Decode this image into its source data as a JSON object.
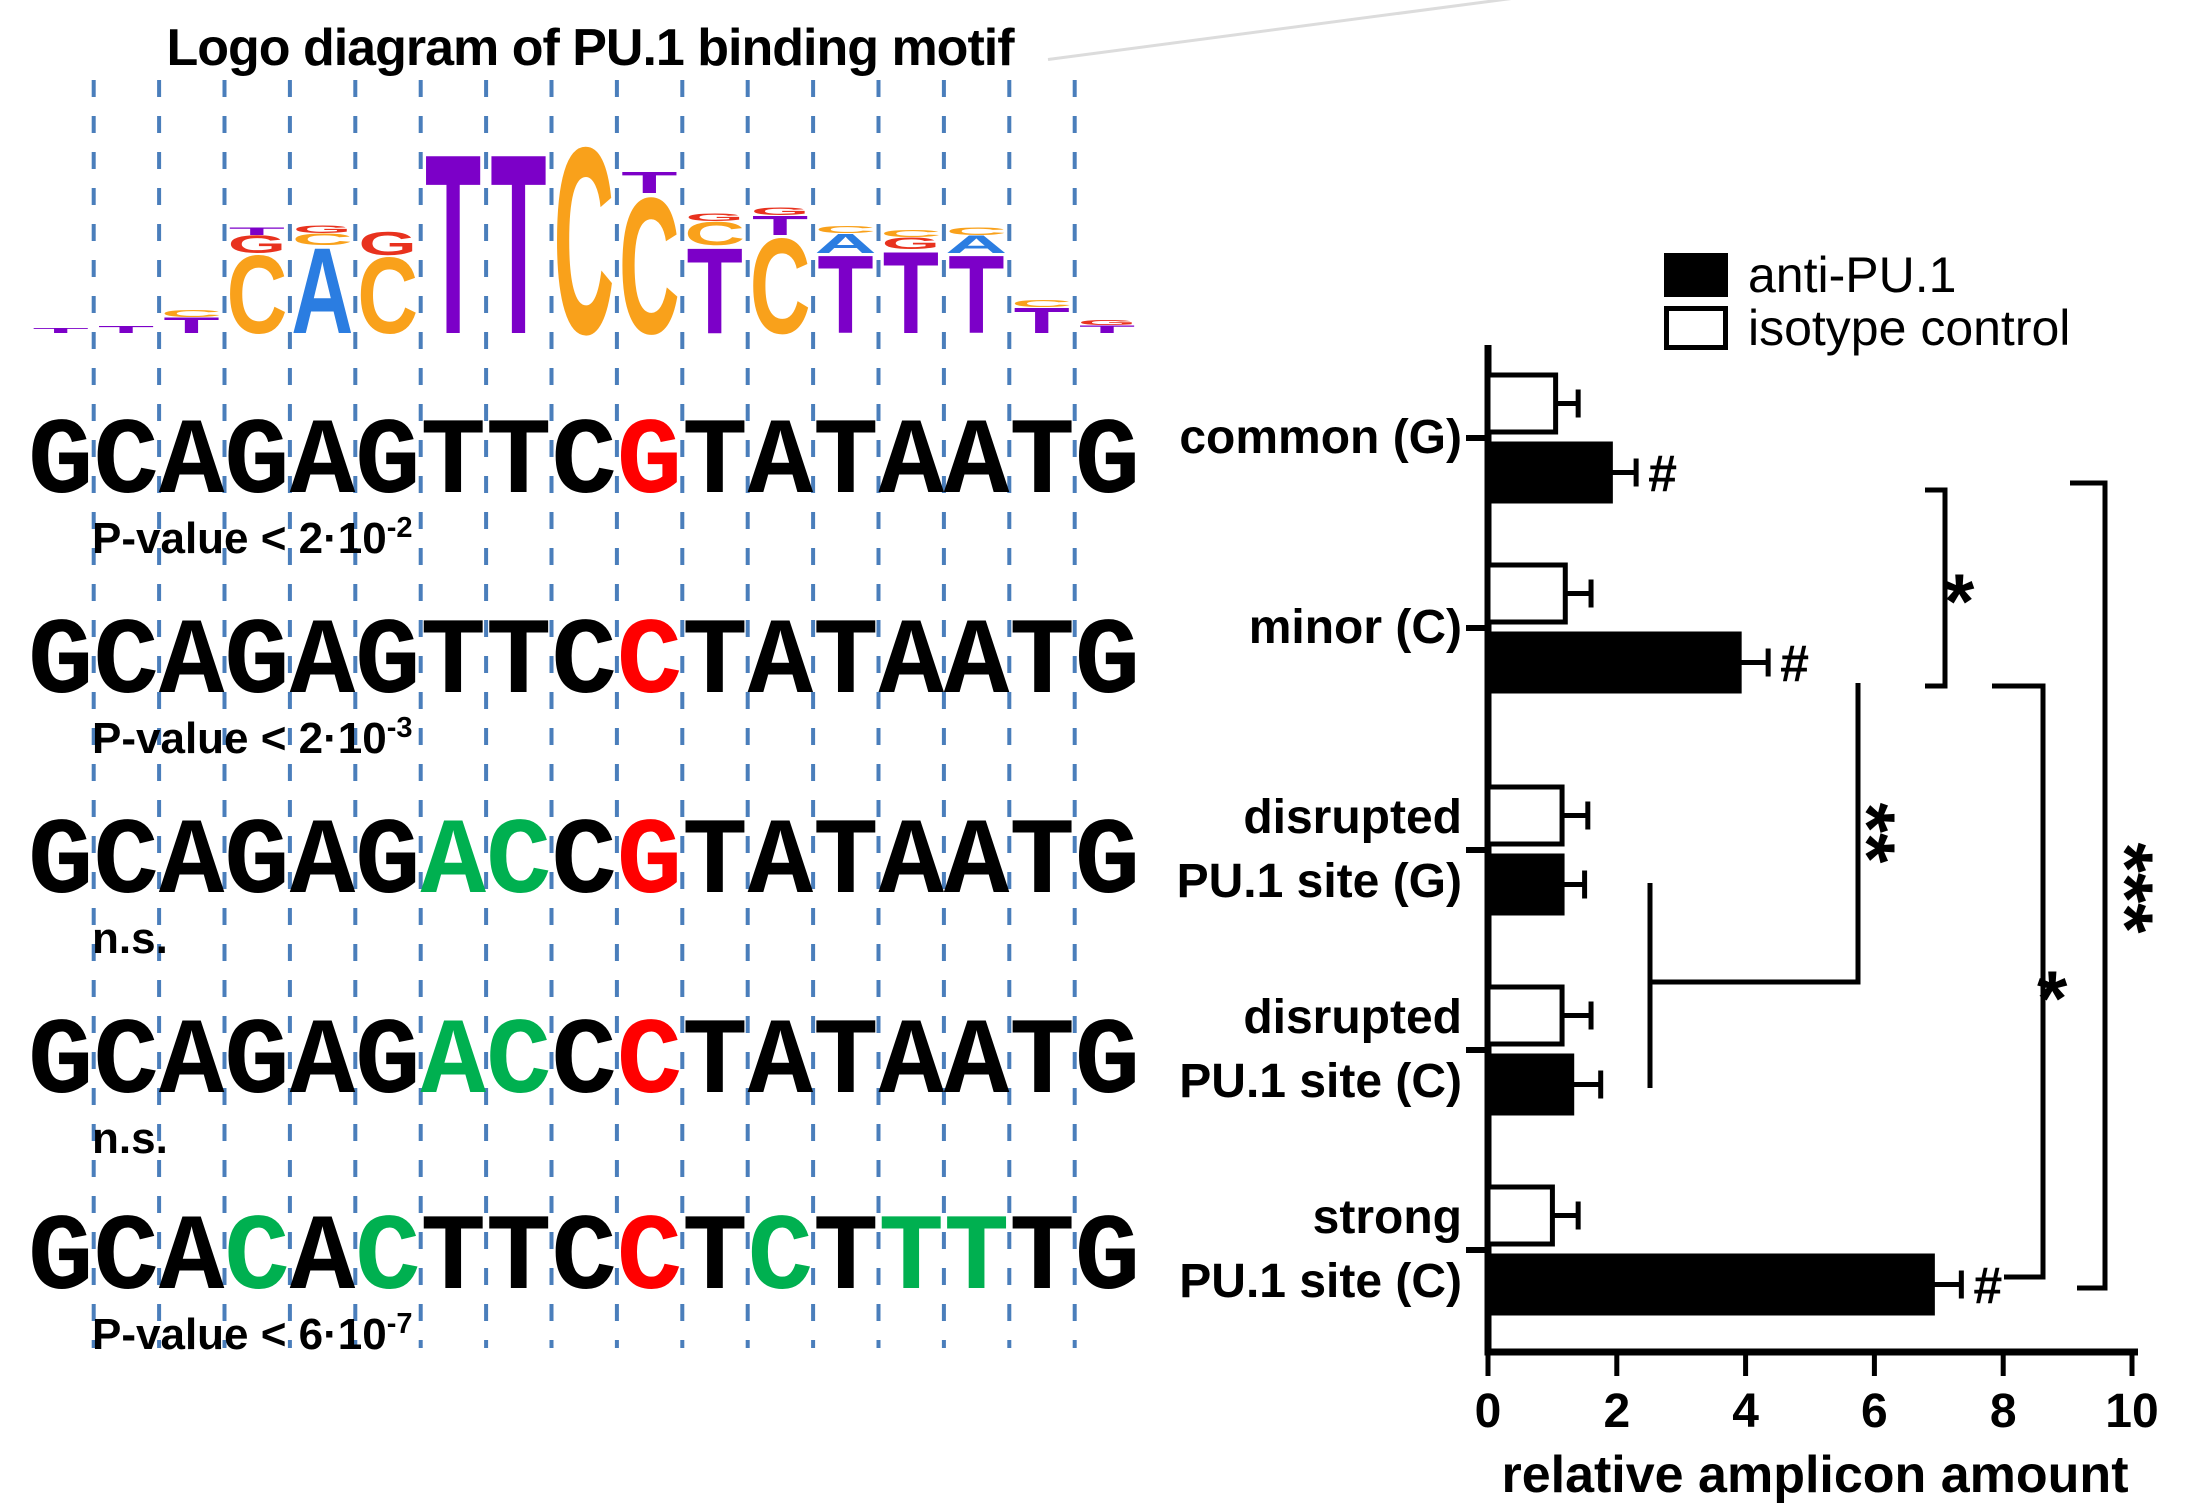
{
  "title": "Logo diagram of PU.1 binding motif",
  "colors": {
    "purple": "#7c00c8",
    "orange": "#f9a11b",
    "blue": "#2b7de1",
    "red_logo": "#e8321e",
    "red": "#ff0000",
    "green": "#00b050",
    "black": "#000000",
    "dash_blue": "#4a7ebb"
  },
  "logo_columns": [
    [
      [
        "T",
        "purple",
        5
      ]
    ],
    [
      [
        "T",
        "purple",
        7
      ]
    ],
    [
      [
        "T",
        "purple",
        16
      ],
      [
        "C",
        "orange",
        7
      ]
    ],
    [
      [
        "C",
        "orange",
        80
      ],
      [
        "G",
        "red_logo",
        18
      ],
      [
        "T",
        "purple",
        8
      ]
    ],
    [
      [
        "A",
        "blue",
        88
      ],
      [
        "C",
        "orange",
        12
      ],
      [
        "G",
        "red_logo",
        8
      ]
    ],
    [
      [
        "C",
        "orange",
        78
      ],
      [
        "G",
        "red_logo",
        24
      ]
    ],
    [
      [
        "T",
        "purple",
        185
      ]
    ],
    [
      [
        "T",
        "purple",
        185
      ]
    ],
    [
      [
        "C",
        "orange",
        192
      ]
    ],
    [
      [
        "C",
        "orange",
        140
      ],
      [
        "T",
        "purple",
        22
      ]
    ],
    [
      [
        "T",
        "purple",
        88
      ],
      [
        "C",
        "orange",
        24
      ],
      [
        "G",
        "red_logo",
        8
      ]
    ],
    [
      [
        "C",
        "orange",
        98
      ],
      [
        "T",
        "purple",
        20
      ],
      [
        "G",
        "red_logo",
        8
      ]
    ],
    [
      [
        "T",
        "purple",
        80
      ],
      [
        "A",
        "blue",
        20
      ],
      [
        "C",
        "orange",
        7
      ]
    ],
    [
      [
        "T",
        "purple",
        84
      ],
      [
        "G",
        "red_logo",
        12
      ],
      [
        "C",
        "orange",
        7
      ]
    ],
    [
      [
        "T",
        "purple",
        80
      ],
      [
        "A",
        "blue",
        18
      ],
      [
        "C",
        "orange",
        8
      ]
    ],
    [
      [
        "T",
        "purple",
        26
      ],
      [
        "C",
        "orange",
        7
      ]
    ],
    [
      [
        "T",
        "purple",
        8
      ],
      [
        "G",
        "red_logo",
        5
      ]
    ]
  ],
  "sequences": [
    {
      "seq": "GCAGAGTTCGTATAATG",
      "colors": {
        "9": "red"
      },
      "label": "P-value < 2·10",
      "sup": "-2"
    },
    {
      "seq": "GCAGAGTTCCTATAATG",
      "colors": {
        "9": "red"
      },
      "label": "P-value < 2·10",
      "sup": "-3"
    },
    {
      "seq": "GCAGAGACCGTATAATG",
      "colors": {
        "6": "green",
        "7": "green",
        "9": "red"
      },
      "label": "n.s.",
      "sup": ""
    },
    {
      "seq": "GCAGAGACCCTATAATG",
      "colors": {
        "6": "green",
        "7": "green",
        "9": "red"
      },
      "label": "n.s.",
      "sup": ""
    },
    {
      "seq": "GCACACTTCCTCTTTTG",
      "colors": {
        "3": "green",
        "5": "green",
        "9": "red",
        "11": "green",
        "13": "green",
        "14": "green"
      },
      "label": "P-value < 6·10",
      "sup": "-7"
    }
  ],
  "chart_data": {
    "type": "bar",
    "orientation": "horizontal",
    "title": "",
    "categories": [
      "common (G)",
      "minor (C)",
      "disrupted PU.1 site (G)",
      "disrupted PU.1 site (C)",
      "strong PU.1 site (C)"
    ],
    "categories_display": [
      [
        "common (G)"
      ],
      [
        "minor (C)"
      ],
      [
        "disrupted",
        "PU.1 site (G)"
      ],
      [
        "disrupted",
        "PU.1 site (C)"
      ],
      [
        "strong",
        "PU.1 site (C)"
      ]
    ],
    "series": [
      {
        "name": "anti-PU.1",
        "fill": "#000000",
        "values": [
          1.9,
          3.9,
          1.15,
          1.3,
          6.9
        ],
        "errors": [
          0.4,
          0.45,
          0.35,
          0.45,
          0.45
        ],
        "hash_marked": [
          true,
          true,
          false,
          false,
          true
        ]
      },
      {
        "name": "isotype control",
        "fill": "#ffffff",
        "values": [
          1.05,
          1.2,
          1.15,
          1.15,
          1.0
        ],
        "errors": [
          0.35,
          0.4,
          0.4,
          0.45,
          0.4
        ],
        "hash_marked": [
          false,
          false,
          false,
          false,
          false
        ]
      }
    ],
    "hash_label": "#",
    "xlabel": "relative amplicon amount",
    "xlim": [
      0,
      10
    ],
    "xticks": [
      0,
      2,
      4,
      6,
      8,
      10
    ],
    "grid": false,
    "error_bars": true,
    "legend_position": "top-right",
    "significance_brackets": [
      {
        "label": "*",
        "connects": [
          "common (G) anti-PU.1",
          "minor (C) anti-PU.1"
        ]
      },
      {
        "label": "**",
        "connects": [
          "minor (C) anti-PU.1",
          "disrupted PU.1 site (G)+(C) anti-PU.1"
        ]
      },
      {
        "label": "*",
        "connects": [
          "minor (C) anti-PU.1",
          "strong PU.1 site (C) anti-PU.1"
        ]
      },
      {
        "label": "***",
        "connects": [
          "common (G) anti-PU.1",
          "strong PU.1 site (C) anti-PU.1"
        ]
      }
    ]
  }
}
